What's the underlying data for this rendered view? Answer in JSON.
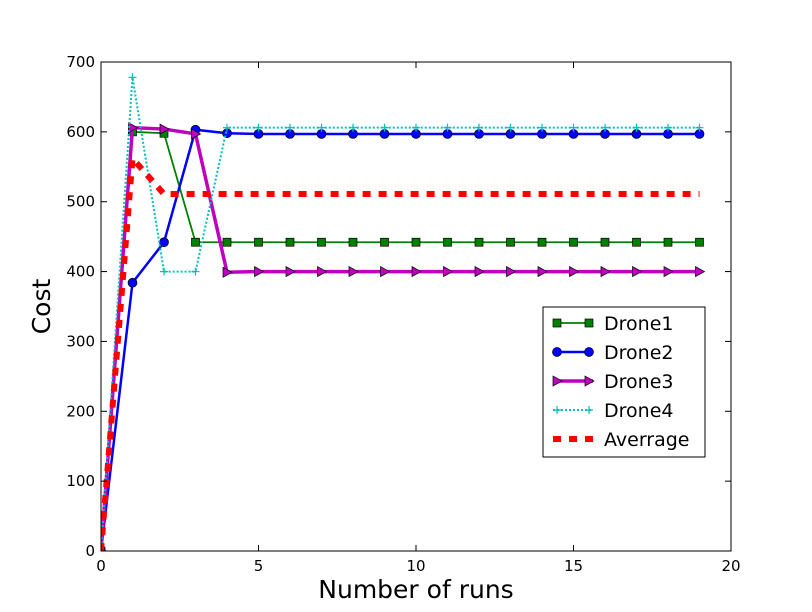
{
  "chart_data": {
    "type": "line",
    "title": "",
    "xlabel": "Number of runs",
    "ylabel": "Cost",
    "xlim": [
      0,
      20
    ],
    "ylim": [
      0,
      700
    ],
    "xticks": [
      0,
      5,
      10,
      15,
      20
    ],
    "yticks": [
      0,
      100,
      200,
      300,
      400,
      500,
      600,
      700
    ],
    "grid": false,
    "legend_position": "center-right",
    "series": [
      {
        "name": "Drone1",
        "color": "#008000",
        "marker": "square",
        "x": [
          0,
          1,
          2,
          3,
          4,
          5,
          6,
          7,
          8,
          9,
          10,
          11,
          12,
          13,
          14,
          15,
          16,
          17,
          18,
          19
        ],
        "values": [
          0,
          600,
          598,
          442,
          442,
          442,
          442,
          442,
          442,
          442,
          442,
          442,
          442,
          442,
          442,
          442,
          442,
          442,
          442,
          442
        ]
      },
      {
        "name": "Drone2",
        "color": "#0000ff",
        "marker": "circle",
        "x": [
          0,
          1,
          2,
          3,
          4,
          5,
          6,
          7,
          8,
          9,
          10,
          11,
          12,
          13,
          14,
          15,
          16,
          17,
          18,
          19
        ],
        "values": [
          0,
          384,
          442,
          603,
          598,
          597,
          597,
          597,
          597,
          597,
          597,
          597,
          597,
          597,
          597,
          597,
          597,
          597,
          597,
          597
        ]
      },
      {
        "name": "Drone3",
        "color": "#bf00bf",
        "marker": "triangle-right",
        "x": [
          0,
          1,
          2,
          3,
          4,
          5,
          6,
          7,
          8,
          9,
          10,
          11,
          12,
          13,
          14,
          15,
          16,
          17,
          18,
          19
        ],
        "values": [
          0,
          606,
          604,
          597,
          399,
          400,
          400,
          400,
          400,
          400,
          400,
          400,
          400,
          400,
          400,
          400,
          400,
          400,
          400,
          400
        ]
      },
      {
        "name": "Drone4",
        "color": "#00bfbf",
        "marker": "tri",
        "x": [
          0,
          1,
          2,
          3,
          4,
          5,
          6,
          7,
          8,
          9,
          10,
          11,
          12,
          13,
          14,
          15,
          16,
          17,
          18,
          19
        ],
        "values": [
          0,
          678,
          400,
          400,
          606,
          606,
          606,
          606,
          606,
          606,
          606,
          606,
          606,
          606,
          606,
          606,
          606,
          606,
          606,
          606
        ]
      },
      {
        "name": "Averrage",
        "color": "#ff0000",
        "marker": "none",
        "x": [
          0,
          1,
          2,
          3,
          4,
          5,
          6,
          7,
          8,
          9,
          10,
          11,
          12,
          13,
          14,
          15,
          16,
          17,
          18,
          19
        ],
        "values": [
          0,
          562,
          511,
          511,
          511,
          511,
          511,
          511,
          511,
          511,
          511,
          511,
          511,
          511,
          511,
          511,
          511,
          511,
          511,
          511
        ]
      }
    ]
  }
}
